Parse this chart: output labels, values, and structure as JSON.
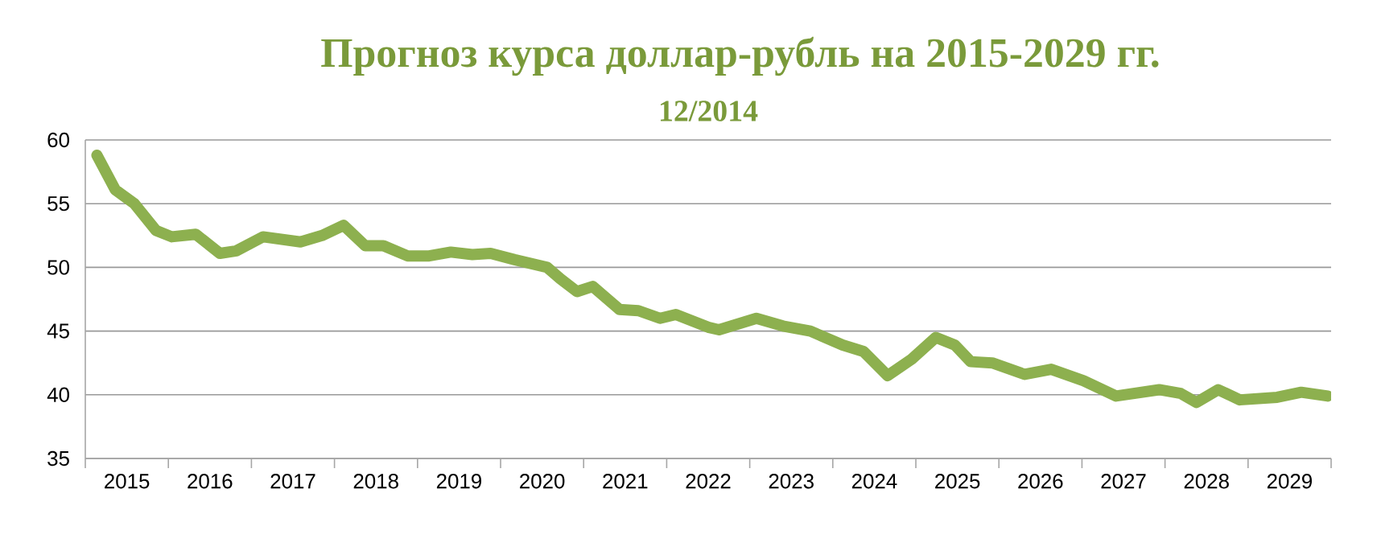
{
  "chart_data": {
    "type": "line",
    "title": "Прогноз курса доллар-рубль на 2015-2029 гг.",
    "subtitle": "12/2014",
    "x": [
      2015.14,
      2015.36,
      2015.59,
      2015.85,
      2016.04,
      2016.33,
      2016.62,
      2016.82,
      2017.14,
      2017.59,
      2017.85,
      2018.11,
      2018.37,
      2018.59,
      2018.88,
      2019.14,
      2019.4,
      2019.66,
      2019.88,
      2020.17,
      2020.56,
      2020.72,
      2020.92,
      2021.11,
      2021.43,
      2021.66,
      2021.92,
      2022.11,
      2022.5,
      2022.63,
      2023.08,
      2023.4,
      2023.73,
      2024.12,
      2024.37,
      2024.66,
      2024.95,
      2025.24,
      2025.47,
      2025.66,
      2025.92,
      2026.31,
      2026.63,
      2027.02,
      2027.41,
      2027.93,
      2028.19,
      2028.38,
      2028.64,
      2028.9,
      2029.35,
      2029.64,
      2029.96
    ],
    "series": [
      {
        "color": "#8db04f",
        "line_style": "solid",
        "values": [
          58.8,
          56.1,
          55.0,
          52.9,
          52.4,
          52.6,
          51.1,
          51.3,
          52.4,
          52.0,
          52.5,
          53.3,
          51.7,
          51.7,
          50.9,
          50.9,
          51.2,
          51.0,
          51.1,
          50.6,
          50.0,
          49.1,
          48.1,
          48.5,
          46.7,
          46.6,
          46.0,
          46.3,
          45.3,
          45.1,
          46.0,
          45.4,
          45.0,
          43.9,
          43.4,
          41.5,
          42.8,
          44.5,
          43.9,
          42.6,
          42.5,
          41.6,
          42.0,
          41.1,
          39.9,
          40.4,
          40.1,
          39.4,
          40.4,
          39.6,
          39.8,
          40.2,
          39.9
        ]
      }
    ],
    "xlim": [
      2015,
      2030
    ],
    "xticks": [
      {
        "value": 2015,
        "label": null
      },
      {
        "value": 2016,
        "label": null
      },
      {
        "value": 2017,
        "label": null
      },
      {
        "value": 2018,
        "label": null
      },
      {
        "value": 2019,
        "label": null
      },
      {
        "value": 2020,
        "label": null
      },
      {
        "value": 2021,
        "label": null
      },
      {
        "value": 2022,
        "label": null
      },
      {
        "value": 2023,
        "label": null
      },
      {
        "value": 2024,
        "label": null
      },
      {
        "value": 2025,
        "label": null
      },
      {
        "value": 2026,
        "label": null
      },
      {
        "value": 2027,
        "label": null
      },
      {
        "value": 2028,
        "label": null
      },
      {
        "value": 2029,
        "label": null
      },
      {
        "value": 2030,
        "label": null
      },
      {
        "value": 2015.5,
        "label": "2015"
      },
      {
        "value": 2016.5,
        "label": "2016"
      },
      {
        "value": 2017.5,
        "label": "2017"
      },
      {
        "value": 2018.5,
        "label": "2018"
      },
      {
        "value": 2019.5,
        "label": "2019"
      },
      {
        "value": 2020.5,
        "label": "2020"
      },
      {
        "value": 2021.5,
        "label": "2021"
      },
      {
        "value": 2022.5,
        "label": "2022"
      },
      {
        "value": 2023.5,
        "label": "2023"
      },
      {
        "value": 2024.5,
        "label": "2024"
      },
      {
        "value": 2025.5,
        "label": "2025"
      },
      {
        "value": 2026.5,
        "label": "2026"
      },
      {
        "value": 2027.5,
        "label": "2027"
      },
      {
        "value": 2028.5,
        "label": "2028"
      },
      {
        "value": 2029.5,
        "label": "2029"
      }
    ],
    "ylim": [
      35,
      60
    ],
    "yticks": [
      35,
      40,
      45,
      50,
      55,
      60
    ],
    "grid": "y"
  }
}
